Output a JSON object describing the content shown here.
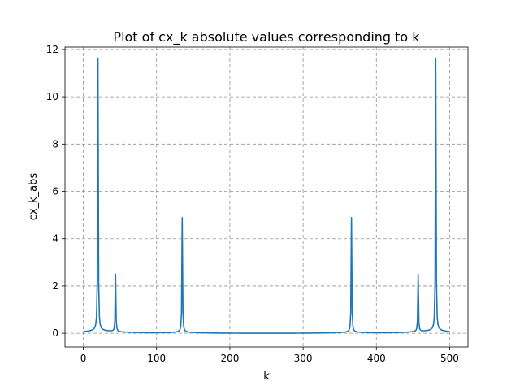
{
  "chart_data": {
    "type": "line",
    "title": "Plot of cx_k absolute values corresponding to k",
    "xlabel": "k",
    "ylabel": "cx_k_abs",
    "xlim": [
      -25,
      525
    ],
    "ylim": [
      -0.58,
      12.1
    ],
    "xticks": [
      0,
      100,
      200,
      300,
      400,
      500
    ],
    "yticks": [
      0,
      2,
      4,
      6,
      8,
      10,
      12
    ],
    "grid": true,
    "series": [
      {
        "color": "#1f77b4",
        "n_points": 501,
        "base_level": 0.0,
        "base_slope": 0.0,
        "peaks": [
          {
            "k": 20,
            "value": 11.45
          },
          {
            "k": 44,
            "value": 2.42
          },
          {
            "k": 135,
            "value": 4.83
          },
          {
            "k": 366,
            "value": 4.83
          },
          {
            "k": 457,
            "value": 2.42
          },
          {
            "k": 481,
            "value": 11.45
          }
        ]
      }
    ]
  }
}
